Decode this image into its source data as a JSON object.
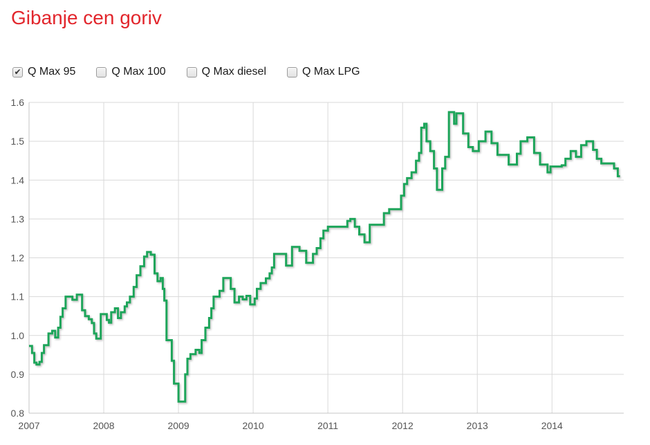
{
  "page": {
    "title": "Gibanje cen goriv",
    "title_color": "#e2262c",
    "background": "#ffffff"
  },
  "series_toggles": [
    {
      "label": "Q Max 95",
      "checked": true
    },
    {
      "label": "Q Max 100",
      "checked": false
    },
    {
      "label": "Q Max diesel",
      "checked": false
    },
    {
      "label": "Q Max LPG",
      "checked": false
    }
  ],
  "chart_data": {
    "type": "line",
    "line_style": "step-after",
    "title": "",
    "xlabel": "",
    "ylabel": "",
    "xlim": [
      2007,
      2014.96
    ],
    "ylim": [
      0.8,
      1.6
    ],
    "x_ticks": [
      2007,
      2008,
      2009,
      2010,
      2011,
      2012,
      2013,
      2014
    ],
    "y_ticks": [
      0.8,
      0.9,
      1.0,
      1.1,
      1.2,
      1.3,
      1.4,
      1.5,
      1.6
    ],
    "grid": true,
    "grid_color": "#d9d9d9",
    "axis_color": "#c4c4c4",
    "tick_label_color": "#555555",
    "legend_position": "none",
    "series": [
      {
        "name": "Q Max 95",
        "color": "#1ea55a",
        "unit": "EUR/l",
        "end_x": 2014.91,
        "points": [
          [
            2007.0,
            0.973
          ],
          [
            2007.04,
            0.955
          ],
          [
            2007.07,
            0.93
          ],
          [
            2007.1,
            0.925
          ],
          [
            2007.14,
            0.932
          ],
          [
            2007.17,
            0.955
          ],
          [
            2007.2,
            0.975
          ],
          [
            2007.26,
            1.005
          ],
          [
            2007.31,
            1.012
          ],
          [
            2007.35,
            0.995
          ],
          [
            2007.39,
            1.02
          ],
          [
            2007.42,
            1.048
          ],
          [
            2007.45,
            1.07
          ],
          [
            2007.49,
            1.1
          ],
          [
            2007.58,
            1.092
          ],
          [
            2007.64,
            1.105
          ],
          [
            2007.71,
            1.065
          ],
          [
            2007.75,
            1.05
          ],
          [
            2007.8,
            1.042
          ],
          [
            2007.84,
            1.032
          ],
          [
            2007.87,
            1.005
          ],
          [
            2007.9,
            0.992
          ],
          [
            2007.96,
            1.055
          ],
          [
            2008.04,
            1.04
          ],
          [
            2008.07,
            1.033
          ],
          [
            2008.1,
            1.06
          ],
          [
            2008.15,
            1.07
          ],
          [
            2008.19,
            1.045
          ],
          [
            2008.23,
            1.06
          ],
          [
            2008.28,
            1.075
          ],
          [
            2008.31,
            1.085
          ],
          [
            2008.35,
            1.1
          ],
          [
            2008.4,
            1.125
          ],
          [
            2008.44,
            1.155
          ],
          [
            2008.49,
            1.178
          ],
          [
            2008.54,
            1.203
          ],
          [
            2008.58,
            1.215
          ],
          [
            2008.63,
            1.208
          ],
          [
            2008.68,
            1.16
          ],
          [
            2008.72,
            1.14
          ],
          [
            2008.76,
            1.148
          ],
          [
            2008.79,
            1.12
          ],
          [
            2008.81,
            1.09
          ],
          [
            2008.84,
            0.988
          ],
          [
            2008.91,
            0.935
          ],
          [
            2008.94,
            0.876
          ],
          [
            2009.0,
            0.83
          ],
          [
            2009.09,
            0.9
          ],
          [
            2009.12,
            0.94
          ],
          [
            2009.16,
            0.952
          ],
          [
            2009.23,
            0.963
          ],
          [
            2009.28,
            0.955
          ],
          [
            2009.31,
            0.988
          ],
          [
            2009.36,
            1.02
          ],
          [
            2009.41,
            1.045
          ],
          [
            2009.44,
            1.07
          ],
          [
            2009.47,
            1.1
          ],
          [
            2009.55,
            1.115
          ],
          [
            2009.6,
            1.148
          ],
          [
            2009.7,
            1.12
          ],
          [
            2009.75,
            1.085
          ],
          [
            2009.81,
            1.1
          ],
          [
            2009.86,
            1.093
          ],
          [
            2009.91,
            1.102
          ],
          [
            2009.96,
            1.08
          ],
          [
            2010.02,
            1.095
          ],
          [
            2010.05,
            1.12
          ],
          [
            2010.1,
            1.135
          ],
          [
            2010.17,
            1.147
          ],
          [
            2010.22,
            1.16
          ],
          [
            2010.25,
            1.175
          ],
          [
            2010.28,
            1.21
          ],
          [
            2010.44,
            1.18
          ],
          [
            2010.52,
            1.228
          ],
          [
            2010.62,
            1.218
          ],
          [
            2010.71,
            1.187
          ],
          [
            2010.8,
            1.21
          ],
          [
            2010.85,
            1.225
          ],
          [
            2010.9,
            1.25
          ],
          [
            2010.94,
            1.27
          ],
          [
            2011.0,
            1.28
          ],
          [
            2011.26,
            1.295
          ],
          [
            2011.3,
            1.3
          ],
          [
            2011.36,
            1.28
          ],
          [
            2011.42,
            1.26
          ],
          [
            2011.49,
            1.24
          ],
          [
            2011.56,
            1.285
          ],
          [
            2011.75,
            1.315
          ],
          [
            2011.82,
            1.325
          ],
          [
            2011.98,
            1.36
          ],
          [
            2012.02,
            1.39
          ],
          [
            2012.06,
            1.405
          ],
          [
            2012.12,
            1.42
          ],
          [
            2012.18,
            1.45
          ],
          [
            2012.22,
            1.47
          ],
          [
            2012.25,
            1.535
          ],
          [
            2012.29,
            1.545
          ],
          [
            2012.32,
            1.5
          ],
          [
            2012.37,
            1.475
          ],
          [
            2012.42,
            1.43
          ],
          [
            2012.46,
            1.375
          ],
          [
            2012.53,
            1.43
          ],
          [
            2012.57,
            1.46
          ],
          [
            2012.62,
            1.575
          ],
          [
            2012.69,
            1.545
          ],
          [
            2012.72,
            1.572
          ],
          [
            2012.81,
            1.52
          ],
          [
            2012.88,
            1.485
          ],
          [
            2012.94,
            1.475
          ],
          [
            2013.02,
            1.5
          ],
          [
            2013.11,
            1.525
          ],
          [
            2013.19,
            1.495
          ],
          [
            2013.27,
            1.465
          ],
          [
            2013.42,
            1.44
          ],
          [
            2013.53,
            1.468
          ],
          [
            2013.58,
            1.5
          ],
          [
            2013.67,
            1.51
          ],
          [
            2013.76,
            1.47
          ],
          [
            2013.84,
            1.44
          ],
          [
            2013.94,
            1.42
          ],
          [
            2013.98,
            1.435
          ],
          [
            2014.13,
            1.438
          ],
          [
            2014.18,
            1.455
          ],
          [
            2014.25,
            1.475
          ],
          [
            2014.32,
            1.46
          ],
          [
            2014.39,
            1.49
          ],
          [
            2014.46,
            1.5
          ],
          [
            2014.55,
            1.478
          ],
          [
            2014.6,
            1.455
          ],
          [
            2014.66,
            1.443
          ],
          [
            2014.83,
            1.43
          ],
          [
            2014.88,
            1.41
          ]
        ]
      }
    ]
  }
}
